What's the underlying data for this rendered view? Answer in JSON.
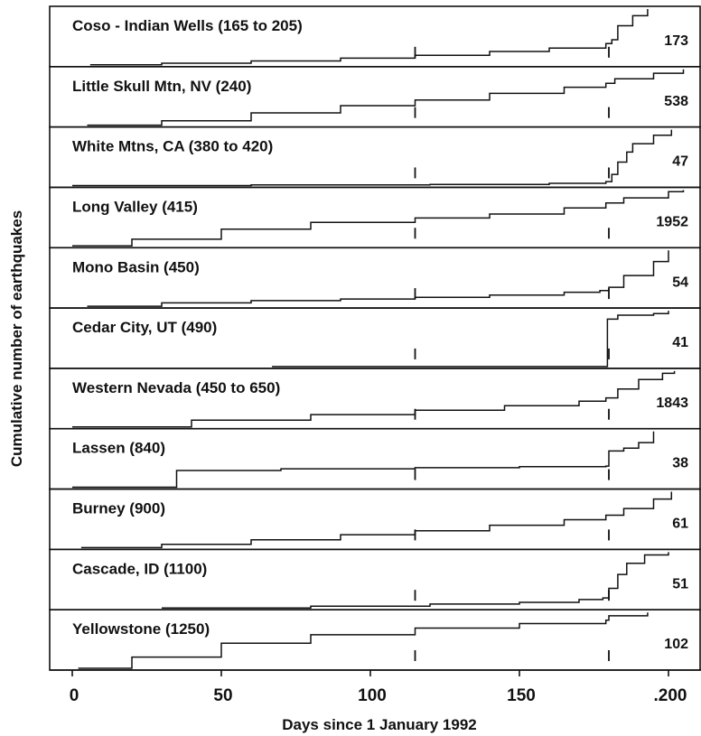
{
  "chart_data": {
    "type": "line",
    "xlabel": "Days since 1 January 1992",
    "ylabel": "Cumulative number of earthquakes",
    "xlim": [
      -8,
      212
    ],
    "x_ticks": [
      0,
      50,
      100,
      150,
      200
    ],
    "x_tick_labels": [
      "0",
      "50",
      "100",
      "150",
      ".200"
    ],
    "markers": [
      115,
      180
    ],
    "series": [
      {
        "name": "Coso - Indian Wells (165 to 205)",
        "total": "173",
        "points": [
          [
            6,
            0
          ],
          [
            30,
            0.03
          ],
          [
            60,
            0.07
          ],
          [
            90,
            0.12
          ],
          [
            115,
            0.17
          ],
          [
            140,
            0.24
          ],
          [
            160,
            0.3
          ],
          [
            179,
            0.38
          ],
          [
            181,
            0.45
          ],
          [
            183,
            0.7
          ],
          [
            188,
            0.88
          ],
          [
            193,
            1.0
          ]
        ]
      },
      {
        "name": "Little Skull Mtn, NV (240)",
        "total": "538",
        "points": [
          [
            5,
            0
          ],
          [
            30,
            0.08
          ],
          [
            60,
            0.22
          ],
          [
            90,
            0.35
          ],
          [
            115,
            0.45
          ],
          [
            140,
            0.57
          ],
          [
            165,
            0.68
          ],
          [
            179,
            0.75
          ],
          [
            182,
            0.83
          ],
          [
            195,
            0.93
          ],
          [
            205,
            1.0
          ]
        ]
      },
      {
        "name": "White Mtns, CA (380 to 420)",
        "total": "47",
        "points": [
          [
            0,
            0
          ],
          [
            60,
            0.01
          ],
          [
            120,
            0.02
          ],
          [
            160,
            0.04
          ],
          [
            179,
            0.07
          ],
          [
            181,
            0.2
          ],
          [
            183,
            0.42
          ],
          [
            186,
            0.6
          ],
          [
            188,
            0.75
          ],
          [
            195,
            0.9
          ],
          [
            201,
            1.0
          ]
        ]
      },
      {
        "name": "Long Valley (415)",
        "total": "1952",
        "points": [
          [
            0,
            0
          ],
          [
            20,
            0.12
          ],
          [
            50,
            0.3
          ],
          [
            80,
            0.42
          ],
          [
            115,
            0.5
          ],
          [
            140,
            0.57
          ],
          [
            165,
            0.68
          ],
          [
            179,
            0.77
          ],
          [
            185,
            0.86
          ],
          [
            200,
            0.97
          ],
          [
            205,
            1.0
          ]
        ]
      },
      {
        "name": "Mono Basin (450)",
        "total": "54",
        "points": [
          [
            5,
            0
          ],
          [
            30,
            0.06
          ],
          [
            60,
            0.1
          ],
          [
            90,
            0.13
          ],
          [
            115,
            0.16
          ],
          [
            140,
            0.2
          ],
          [
            165,
            0.25
          ],
          [
            177,
            0.28
          ],
          [
            180,
            0.34
          ],
          [
            185,
            0.55
          ],
          [
            195,
            0.8
          ],
          [
            200,
            1.0
          ]
        ]
      },
      {
        "name": "Cedar City, UT (490)",
        "total": "41",
        "points": [
          [
            67,
            0
          ],
          [
            179,
            0
          ],
          [
            179.5,
            0.85
          ],
          [
            183,
            0.92
          ],
          [
            195,
            0.95
          ],
          [
            200,
            1.0
          ]
        ]
      },
      {
        "name": "Western Nevada (450 to 650)",
        "total": "1843",
        "points": [
          [
            0,
            0
          ],
          [
            40,
            0.12
          ],
          [
            80,
            0.22
          ],
          [
            115,
            0.3
          ],
          [
            145,
            0.38
          ],
          [
            170,
            0.46
          ],
          [
            179,
            0.52
          ],
          [
            183,
            0.68
          ],
          [
            190,
            0.85
          ],
          [
            198,
            0.96
          ],
          [
            202,
            1.0
          ]
        ]
      },
      {
        "name": "Lassen (840)",
        "total": "38",
        "points": [
          [
            0,
            0
          ],
          [
            33,
            0
          ],
          [
            35,
            0.3
          ],
          [
            70,
            0.33
          ],
          [
            115,
            0.35
          ],
          [
            150,
            0.37
          ],
          [
            179,
            0.38
          ],
          [
            180,
            0.65
          ],
          [
            185,
            0.7
          ],
          [
            190,
            0.8
          ],
          [
            195,
            1.0
          ]
        ]
      },
      {
        "name": "Burney (900)",
        "total": "61",
        "points": [
          [
            3,
            0
          ],
          [
            30,
            0.06
          ],
          [
            60,
            0.14
          ],
          [
            90,
            0.23
          ],
          [
            115,
            0.3
          ],
          [
            140,
            0.4
          ],
          [
            165,
            0.5
          ],
          [
            179,
            0.58
          ],
          [
            185,
            0.7
          ],
          [
            195,
            0.87
          ],
          [
            201,
            1.0
          ]
        ]
      },
      {
        "name": "Cascade, ID (1100)",
        "total": "51",
        "points": [
          [
            30,
            0
          ],
          [
            80,
            0.03
          ],
          [
            120,
            0.07
          ],
          [
            150,
            0.1
          ],
          [
            170,
            0.15
          ],
          [
            178,
            0.18
          ],
          [
            180,
            0.35
          ],
          [
            183,
            0.6
          ],
          [
            186,
            0.8
          ],
          [
            192,
            0.95
          ],
          [
            200,
            1.0
          ]
        ]
      },
      {
        "name": "Yellowstone (1250)",
        "total": "102",
        "points": [
          [
            2,
            0
          ],
          [
            20,
            0.2
          ],
          [
            50,
            0.45
          ],
          [
            80,
            0.6
          ],
          [
            115,
            0.72
          ],
          [
            150,
            0.8
          ],
          [
            179,
            0.86
          ],
          [
            180,
            0.94
          ],
          [
            193,
            1.0
          ]
        ]
      }
    ]
  }
}
